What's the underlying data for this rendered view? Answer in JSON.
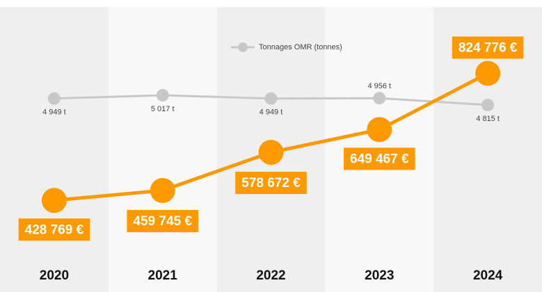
{
  "chart_data": {
    "type": "line",
    "categories": [
      "2020",
      "2021",
      "2022",
      "2023",
      "2024"
    ],
    "series": [
      {
        "name": "Tonnages OMR (tonnes)",
        "color": "#c8c8c8",
        "axis": "y2",
        "values": [
          4949,
          5017,
          4949,
          4956,
          4815
        ],
        "value_labels": [
          "4 949 t",
          "5 017 t",
          "4 949 t",
          "4 956 t",
          "4 815 t"
        ]
      },
      {
        "color": "#ff9900",
        "values": [
          428769,
          459745,
          578672,
          649467,
          824776
        ],
        "value_labels": [
          "428 769 €",
          "459 745 €",
          "578 672 €",
          "649 467 €",
          "824 776 €"
        ]
      }
    ],
    "ylim": [
      230000,
      1010000
    ],
    "y2lim": [
      1520,
      6700
    ],
    "legend": "top"
  }
}
